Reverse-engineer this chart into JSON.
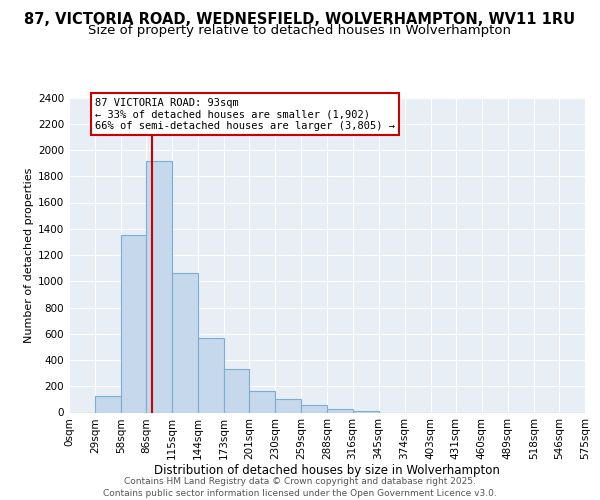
{
  "title": "87, VICTORIA ROAD, WEDNESFIELD, WOLVERHAMPTON, WV11 1RU",
  "subtitle": "Size of property relative to detached houses in Wolverhampton",
  "xlabel": "Distribution of detached houses by size in Wolverhampton",
  "ylabel": "Number of detached properties",
  "background_color": "#e8eef5",
  "bar_color": "#c5d8ec",
  "bar_edge_color": "#7aafd4",
  "bin_edges": [
    0,
    29,
    58,
    86,
    115,
    144,
    173,
    201,
    230,
    259,
    288,
    316,
    345,
    374,
    403,
    431,
    460,
    489,
    518,
    546,
    575
  ],
  "bin_labels": [
    "0sqm",
    "29sqm",
    "58sqm",
    "86sqm",
    "115sqm",
    "144sqm",
    "173sqm",
    "201sqm",
    "230sqm",
    "259sqm",
    "288sqm",
    "316sqm",
    "345sqm",
    "374sqm",
    "403sqm",
    "431sqm",
    "460sqm",
    "489sqm",
    "518sqm",
    "546sqm",
    "575sqm"
  ],
  "bar_heights": [
    0,
    125,
    1350,
    1920,
    1060,
    565,
    335,
    165,
    105,
    60,
    30,
    10,
    0,
    0,
    0,
    0,
    0,
    0,
    0,
    0
  ],
  "property_line_x": 93,
  "ylim": [
    0,
    2400
  ],
  "yticks": [
    0,
    200,
    400,
    600,
    800,
    1000,
    1200,
    1400,
    1600,
    1800,
    2000,
    2200,
    2400
  ],
  "annotation_title": "87 VICTORIA ROAD: 93sqm",
  "annotation_line1": "← 33% of detached houses are smaller (1,902)",
  "annotation_line2": "66% of semi-detached houses are larger (3,805) →",
  "red_line_color": "#cc0000",
  "annotation_box_color": "#ffffff",
  "annotation_box_edge_color": "#cc0000",
  "footer_line1": "Contains HM Land Registry data © Crown copyright and database right 2025.",
  "footer_line2": "Contains public sector information licensed under the Open Government Licence v3.0.",
  "title_fontsize": 10.5,
  "subtitle_fontsize": 9.5,
  "xlabel_fontsize": 8.5,
  "ylabel_fontsize": 8,
  "tick_fontsize": 7.5,
  "annotation_fontsize": 7.5,
  "footer_fontsize": 6.5
}
